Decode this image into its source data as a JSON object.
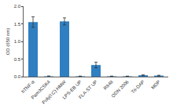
{
  "chart_data": {
    "type": "bar",
    "y_label": "OD (650 nm)",
    "categories": [
      "hTNF-α",
      "Pam3CSK4",
      "Poly(I:C) HMW",
      "LPS-EB UP",
      "FLA-ST UP",
      "R848",
      "ODN 2006",
      "Tri-DAP",
      "MDP"
    ],
    "values": [
      1.55,
      0.01,
      1.57,
      0.01,
      0.33,
      0.01,
      0.01,
      0.04,
      0.03
    ],
    "errors": [
      0.15,
      0.01,
      0.1,
      0.005,
      0.08,
      0.005,
      0.005,
      0.01,
      0.01
    ],
    "color": "#2f7fc1",
    "ylim": [
      0,
      2.0
    ],
    "yticks": [
      {
        "value": 0,
        "label": "0.0"
      },
      {
        "value": 0.5,
        "label": "0.5"
      },
      {
        "value": 1.0,
        "label": "1.0"
      },
      {
        "value": 1.5,
        "label": "1.5"
      },
      {
        "value": 2.0,
        "label": "2.0"
      }
    ],
    "grid": false
  }
}
